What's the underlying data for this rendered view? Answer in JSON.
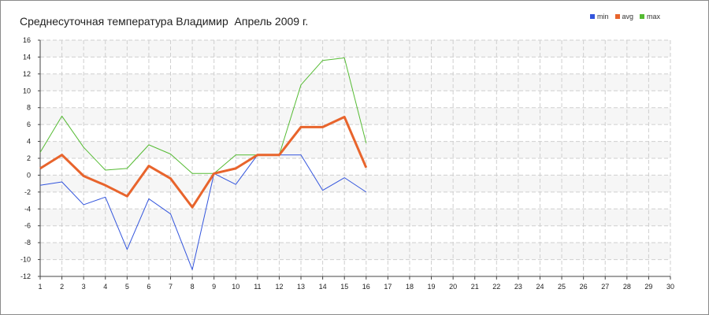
{
  "chart_data": {
    "type": "line",
    "title": "Среднесуточная температура Владимир  Апрель 2009 г.",
    "x": [
      1,
      2,
      3,
      4,
      5,
      6,
      7,
      8,
      9,
      10,
      11,
      12,
      13,
      14,
      15,
      16
    ],
    "xlim": [
      1,
      30
    ],
    "xticks": [
      "1",
      "2",
      "3",
      "4",
      "5",
      "6",
      "7",
      "8",
      "9",
      "10",
      "11",
      "12",
      "13",
      "14",
      "15",
      "16",
      "17",
      "18",
      "19",
      "20",
      "21",
      "22",
      "23",
      "24",
      "25",
      "26",
      "27",
      "28",
      "29",
      "30"
    ],
    "ylim": [
      -12,
      16
    ],
    "yticks": [
      "-12",
      "-10",
      "-8",
      "-6",
      "-4",
      "-2",
      "0",
      "2",
      "4",
      "6",
      "8",
      "10",
      "12",
      "14",
      "16"
    ],
    "grid": true,
    "legend_position": "top-right",
    "series": [
      {
        "name": "min",
        "color": "#3355dd",
        "values": [
          -1.2,
          -0.8,
          -3.5,
          -2.6,
          -8.8,
          -2.8,
          -4.6,
          -11.2,
          0.2,
          -1.1,
          2.4,
          2.4,
          2.4,
          -1.8,
          -0.3,
          -2.0
        ]
      },
      {
        "name": "avg",
        "color": "#e8642c",
        "values": [
          0.8,
          2.4,
          -0.1,
          -1.2,
          -2.5,
          1.1,
          -0.4,
          -3.8,
          0.2,
          0.8,
          2.4,
          2.4,
          5.7,
          5.7,
          6.9,
          0.9
        ]
      },
      {
        "name": "max",
        "color": "#55bb33",
        "values": [
          2.7,
          7.0,
          3.3,
          0.6,
          0.8,
          3.6,
          2.5,
          0.2,
          0.2,
          2.4,
          2.4,
          2.4,
          10.7,
          13.6,
          13.9,
          3.8
        ]
      }
    ]
  }
}
